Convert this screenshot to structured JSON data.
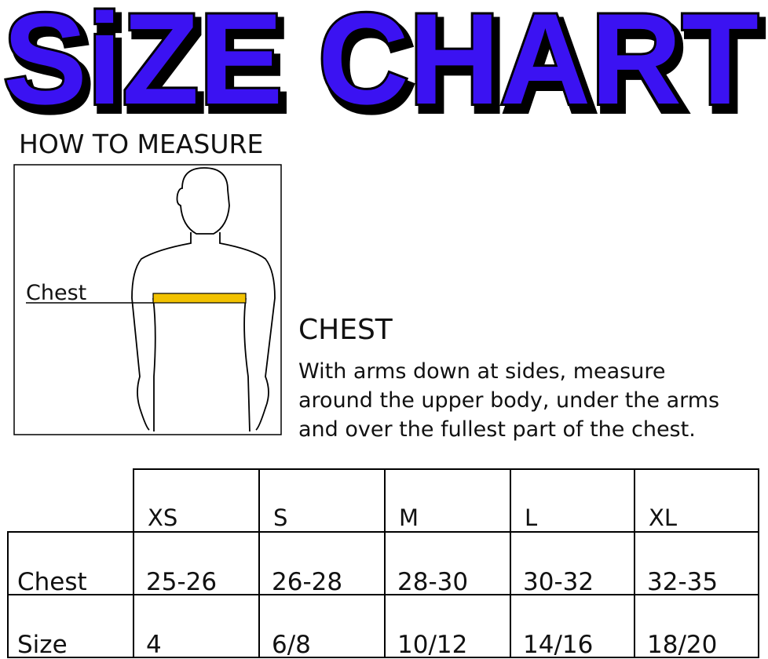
{
  "title": "SiZE CHART",
  "how_to_measure": {
    "heading": "HOW TO MEASURE",
    "figure_label": "Chest"
  },
  "section": {
    "heading": "CHEST",
    "lines": [
      "With arms down at sides, measure",
      "around the upper body, under the arms",
      "and over the fullest part of the chest."
    ]
  },
  "table": {
    "sizes": [
      "XS",
      "S",
      "M",
      "L",
      "XL"
    ],
    "rows": [
      {
        "label": "Chest",
        "values": [
          "25-26",
          "26-28",
          "28-30",
          "30-32",
          "32-35"
        ]
      },
      {
        "label": "Size",
        "values": [
          "4",
          "6/8",
          "10/12",
          "14/16",
          "18/20"
        ]
      }
    ]
  }
}
